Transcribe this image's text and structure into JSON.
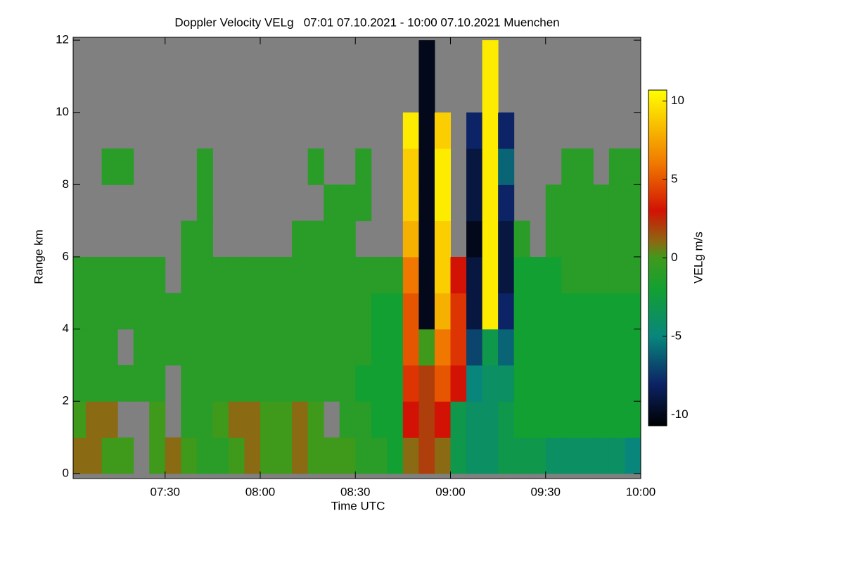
{
  "chart_data": {
    "type": "heatmap",
    "title": "Doppler Velocity VELg   07:01 07.10.2021 - 10:00 07.10.2021 Muenchen",
    "x_label": "Time UTC",
    "y_label": "Range km",
    "colorbar_label": "VELg m/s",
    "x": [
      "07:01",
      "07:05",
      "07:10",
      "07:15",
      "07:20",
      "07:25",
      "07:30",
      "07:35",
      "07:40",
      "07:45",
      "07:50",
      "07:55",
      "08:00",
      "08:05",
      "08:10",
      "08:15",
      "08:20",
      "08:25",
      "08:30",
      "08:35",
      "08:40",
      "08:45",
      "08:50",
      "08:55",
      "09:00",
      "09:05",
      "09:10",
      "09:15",
      "09:20",
      "09:25",
      "09:30",
      "09:35",
      "09:40",
      "09:45",
      "09:50",
      "09:55",
      "10:00"
    ],
    "y": [
      0,
      1,
      2,
      3,
      4,
      5,
      6,
      7,
      8,
      9,
      10,
      11,
      12
    ],
    "z": [
      [
        1,
        1,
        0,
        0,
        null,
        0,
        1,
        0,
        -1,
        -1,
        0,
        1,
        0,
        0,
        1,
        0,
        0,
        0,
        -1,
        -1,
        -2,
        1,
        2,
        1,
        -3,
        -4,
        -4,
        -3,
        -3,
        -3,
        -4,
        -4,
        -4,
        -4,
        -4,
        -5
      ],
      [
        0,
        1,
        1,
        null,
        null,
        0,
        null,
        -1,
        -1,
        0,
        1,
        1,
        0,
        0,
        1,
        0,
        null,
        -1,
        -1,
        -2,
        -2,
        3,
        2,
        3,
        -3,
        -4,
        -4,
        -3,
        -2,
        -2,
        -2,
        -2,
        -2,
        -2,
        -2,
        -2
      ],
      [
        -1,
        -1,
        -1,
        -1,
        -1,
        -1,
        null,
        -1,
        -1,
        -1,
        -1,
        -1,
        -1,
        -1,
        -1,
        -1,
        -1,
        -1,
        -2,
        -2,
        -2,
        4,
        2,
        5,
        3,
        -5,
        -4,
        -4,
        -2,
        -2,
        -2,
        -2,
        -2,
        -2,
        -2,
        -2
      ],
      [
        -1,
        -1,
        -1,
        null,
        -1,
        -1,
        -1,
        -1,
        -1,
        -1,
        -1,
        -1,
        -1,
        -1,
        -1,
        -1,
        -1,
        -1,
        -1,
        -2,
        -2,
        5,
        0,
        6,
        4,
        -7,
        -3,
        -6,
        -2,
        -2,
        -2,
        -2,
        -2,
        -2,
        -2,
        -2
      ],
      [
        -1,
        -1,
        -1,
        -1,
        -1,
        -1,
        -1,
        -1,
        -1,
        -1,
        -1,
        -1,
        -1,
        -1,
        -1,
        -1,
        -1,
        -1,
        -1,
        -2,
        -2,
        5,
        -10,
        8,
        4,
        -9,
        10,
        -8,
        -2,
        -2,
        -2,
        -2,
        -2,
        -2,
        -2,
        -2
      ],
      [
        -1,
        -1,
        -1,
        -1,
        -1,
        -1,
        null,
        -1,
        -1,
        -1,
        -1,
        -1,
        -1,
        -1,
        -1,
        -1,
        -1,
        -1,
        -1,
        -1,
        -1,
        6,
        -10,
        9,
        3,
        -9,
        10,
        -9,
        -2,
        -2,
        -2,
        -1,
        -1,
        -1,
        -1,
        -1
      ],
      [
        null,
        null,
        null,
        null,
        null,
        null,
        null,
        -1,
        -1,
        null,
        null,
        null,
        null,
        null,
        -1,
        -1,
        -1,
        -1,
        null,
        null,
        null,
        8,
        -10,
        9,
        null,
        -10,
        10,
        -9,
        -1,
        null,
        -1,
        -1,
        -1,
        -1,
        -1,
        -1
      ],
      [
        null,
        null,
        null,
        null,
        null,
        null,
        null,
        null,
        -1,
        null,
        null,
        null,
        null,
        null,
        null,
        null,
        -1,
        -1,
        -1,
        null,
        null,
        9,
        -10,
        10,
        null,
        -9,
        10,
        -8,
        null,
        null,
        -1,
        -1,
        -1,
        -1,
        -1,
        -1
      ],
      [
        null,
        null,
        -1,
        -1,
        null,
        null,
        null,
        null,
        -1,
        null,
        null,
        null,
        null,
        null,
        null,
        -1,
        null,
        null,
        -1,
        null,
        null,
        9,
        -10,
        10,
        null,
        -9,
        10,
        -6,
        null,
        null,
        null,
        -1,
        -1,
        null,
        -1,
        -1
      ],
      [
        null,
        null,
        null,
        null,
        null,
        null,
        null,
        null,
        null,
        null,
        null,
        null,
        null,
        null,
        null,
        null,
        null,
        null,
        null,
        null,
        null,
        10,
        -10,
        9,
        null,
        -8,
        10,
        -8,
        null,
        null,
        null,
        null,
        null,
        null,
        null,
        null
      ],
      [
        null,
        null,
        null,
        null,
        null,
        null,
        null,
        null,
        null,
        null,
        null,
        null,
        null,
        null,
        null,
        null,
        null,
        null,
        null,
        null,
        null,
        null,
        -10,
        null,
        null,
        null,
        10,
        null,
        null,
        null,
        null,
        null,
        null,
        null,
        null,
        null
      ],
      [
        null,
        null,
        null,
        null,
        null,
        null,
        null,
        null,
        null,
        null,
        null,
        null,
        null,
        null,
        null,
        null,
        null,
        null,
        null,
        null,
        null,
        null,
        -10,
        null,
        null,
        null,
        10,
        null,
        null,
        null,
        null,
        null,
        null,
        null,
        null,
        null
      ]
    ],
    "missing_color": "#808080",
    "xlim": [
      "07:01",
      "10:00"
    ],
    "xticks": [
      "07:30",
      "08:00",
      "08:30",
      "09:00",
      "09:30",
      "10:00"
    ],
    "ylim": [
      -0.14,
      12.08
    ],
    "yticks": [
      0,
      2,
      4,
      6,
      8,
      10,
      12
    ],
    "zlim": [
      -10.7,
      10.7
    ],
    "zticks": [
      10,
      5,
      0,
      -5,
      -10
    ],
    "colorscale": [
      [
        -10.7,
        "#000000"
      ],
      [
        -8,
        "#0c2466"
      ],
      [
        -5,
        "#08867c"
      ],
      [
        -2,
        "#12a032"
      ],
      [
        0,
        "#3f9a1c"
      ],
      [
        1,
        "#8a6a12"
      ],
      [
        3,
        "#d21204"
      ],
      [
        6,
        "#f07800"
      ],
      [
        10.7,
        "#ffff00"
      ]
    ]
  }
}
